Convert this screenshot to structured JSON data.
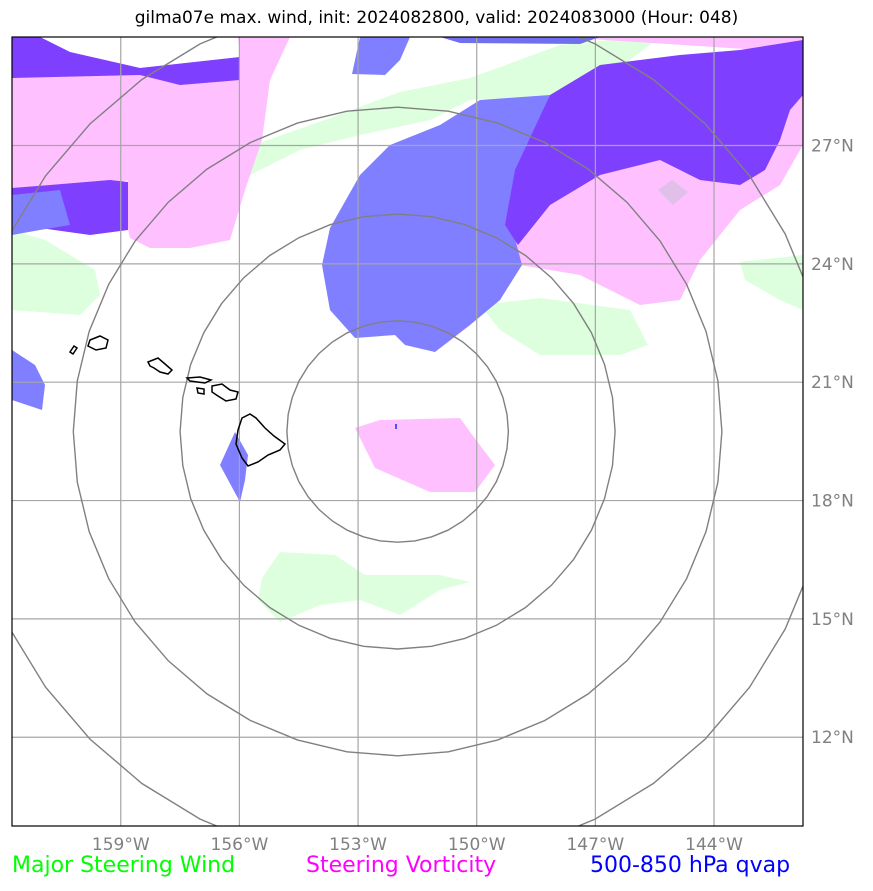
{
  "title": "gilma07e max. wind, init: 2024082800, valid: 2024083000 (Hour: 048)",
  "map": {
    "lon_range": [
      -161.75,
      -141.75
    ],
    "lat_range": [
      9.75,
      29.75
    ],
    "lon_ticks": [
      {
        "value": -159,
        "label": "159°W"
      },
      {
        "value": -156,
        "label": "156°W"
      },
      {
        "value": -153,
        "label": "153°W"
      },
      {
        "value": -150,
        "label": "150°W"
      },
      {
        "value": -147,
        "label": "147°W"
      },
      {
        "value": -144,
        "label": "144°W"
      }
    ],
    "lat_ticks": [
      {
        "value": 12,
        "label": "12°N"
      },
      {
        "value": 15,
        "label": "15°N"
      },
      {
        "value": 18,
        "label": "18°N"
      },
      {
        "value": 21,
        "label": "21°N"
      },
      {
        "value": 24,
        "label": "24°N"
      },
      {
        "value": 27,
        "label": "27°N"
      }
    ],
    "storm_center": {
      "lon": -152.0,
      "lat": 19.75
    },
    "range_rings_deg": [
      2.8,
      5.5,
      8.2,
      11.0
    ],
    "colors": {
      "major_steering_wind": "#ddffdd",
      "steering_vorticity": "#ffc0ff",
      "qvap_light": "#7f7fff",
      "qvap_dark": "#7f3fff",
      "vorticity_overlap": "#e0c0e8",
      "grid": "#a6a6a6",
      "rings": "#808080",
      "coast": "#000000"
    }
  },
  "legend": {
    "wind": {
      "label": "Major Steering Wind",
      "color": "#00ff00"
    },
    "vorticity": {
      "label": "Steering Vorticity",
      "color": "#ff00ff"
    },
    "qvap": {
      "label": "500-850 hPa qvap",
      "color": "#0000ff"
    }
  }
}
